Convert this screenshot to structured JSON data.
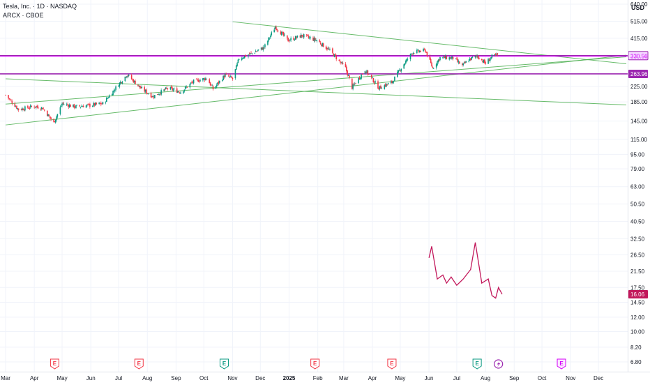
{
  "header": {
    "symbol_line": "Tesla, Inc. · 1D · NASDAQ",
    "overlay_line": "ARCX · CBOE",
    "currency": "USD"
  },
  "colors": {
    "up": "#089981",
    "down": "#f23645",
    "trendline": "#4caf50",
    "level_line": "#9c27b0",
    "magenta_line": "#d500f9",
    "overlay_series": "#c2185b",
    "grid": "#f0f3fa",
    "axis_text": "#131722"
  },
  "chart_data": {
    "type": "line",
    "title": "Tesla, Inc. · 1D · NASDAQ",
    "scale": "log",
    "ylim": [
      5.6,
      880
    ],
    "y_ticks": [
      640.0,
      515.0,
      415.0,
      335.0,
      225.0,
      185.0,
      145.0,
      115.0,
      95.0,
      79.0,
      63.0,
      50.5,
      40.5,
      32.5,
      26.5,
      21.5,
      17.5,
      14.5,
      12.0,
      10.0,
      8.2,
      6.8
    ],
    "x_ticks": [
      {
        "label": "Mar",
        "date": "2024-03-01"
      },
      {
        "label": "Apr",
        "date": "2024-04-01"
      },
      {
        "label": "May",
        "date": "2024-05-01"
      },
      {
        "label": "Jun",
        "date": "2024-06-01"
      },
      {
        "label": "Jul",
        "date": "2024-07-01"
      },
      {
        "label": "Aug",
        "date": "2024-08-01"
      },
      {
        "label": "Sep",
        "date": "2024-09-01"
      },
      {
        "label": "Oct",
        "date": "2024-10-01"
      },
      {
        "label": "Nov",
        "date": "2024-11-01"
      },
      {
        "label": "Dec",
        "date": "2024-12-01"
      },
      {
        "label": "2025",
        "date": "2025-01-01",
        "bold": true
      },
      {
        "label": "Feb",
        "date": "2025-02-01"
      },
      {
        "label": "Mar",
        "date": "2025-03-01"
      },
      {
        "label": "Apr",
        "date": "2025-04-01"
      },
      {
        "label": "May",
        "date": "2025-05-01"
      },
      {
        "label": "Jun",
        "date": "2025-06-01"
      },
      {
        "label": "Jul",
        "date": "2025-07-01"
      },
      {
        "label": "Aug",
        "date": "2025-08-01"
      },
      {
        "label": "Sep",
        "date": "2025-09-01"
      },
      {
        "label": "Oct",
        "date": "2025-10-01"
      },
      {
        "label": "Nov",
        "date": "2025-11-01"
      },
      {
        "label": "Dec",
        "date": "2025-12-01"
      }
    ],
    "xlim": [
      "2024-03-01",
      "2025-12-31"
    ],
    "price_series": {
      "name": "TSLA",
      "points": [
        [
          "2024-03-01",
          202
        ],
        [
          "2024-03-15",
          168
        ],
        [
          "2024-04-01",
          175
        ],
        [
          "2024-04-10",
          171
        ],
        [
          "2024-04-22",
          142
        ],
        [
          "2024-05-01",
          181
        ],
        [
          "2024-05-15",
          174
        ],
        [
          "2024-06-03",
          178
        ],
        [
          "2024-06-14",
          181
        ],
        [
          "2024-07-01",
          231
        ],
        [
          "2024-07-10",
          262
        ],
        [
          "2024-07-25",
          220
        ],
        [
          "2024-08-07",
          198
        ],
        [
          "2024-08-23",
          220
        ],
        [
          "2024-09-06",
          210
        ],
        [
          "2024-09-20",
          240
        ],
        [
          "2024-10-04",
          250
        ],
        [
          "2024-10-11",
          218
        ],
        [
          "2024-10-24",
          260
        ],
        [
          "2024-11-01",
          248
        ],
        [
          "2024-11-08",
          321
        ],
        [
          "2024-11-20",
          340
        ],
        [
          "2024-12-05",
          369
        ],
        [
          "2024-12-17",
          480
        ],
        [
          "2024-12-31",
          404
        ],
        [
          "2025-01-15",
          430
        ],
        [
          "2025-01-31",
          404
        ],
        [
          "2025-02-14",
          355
        ],
        [
          "2025-03-03",
          284
        ],
        [
          "2025-03-10",
          222
        ],
        [
          "2025-03-24",
          278
        ],
        [
          "2025-04-08",
          221
        ],
        [
          "2025-04-22",
          237
        ],
        [
          "2025-05-01",
          280
        ],
        [
          "2025-05-14",
          347
        ],
        [
          "2025-05-28",
          356
        ],
        [
          "2025-06-05",
          284
        ],
        [
          "2025-06-13",
          325
        ],
        [
          "2025-06-27",
          323
        ],
        [
          "2025-07-07",
          293
        ],
        [
          "2025-07-14",
          316
        ],
        [
          "2025-07-23",
          332
        ],
        [
          "2025-08-01",
          302
        ],
        [
          "2025-08-08",
          329
        ],
        [
          "2025-08-14",
          335
        ]
      ]
    },
    "overlay_series": {
      "name": "ARCX · CBOE",
      "points": [
        [
          "2025-06-01",
          25.5
        ],
        [
          "2025-06-04",
          29.5
        ],
        [
          "2025-06-10",
          19.5
        ],
        [
          "2025-06-16",
          20.5
        ],
        [
          "2025-06-20",
          18.5
        ],
        [
          "2025-06-25",
          20.0
        ],
        [
          "2025-07-01",
          18.0
        ],
        [
          "2025-07-08",
          19.5
        ],
        [
          "2025-07-16",
          22.0
        ],
        [
          "2025-07-21",
          31.0
        ],
        [
          "2025-07-28",
          18.5
        ],
        [
          "2025-08-04",
          19.5
        ],
        [
          "2025-08-08",
          15.8
        ],
        [
          "2025-08-12",
          15.3
        ],
        [
          "2025-08-15",
          17.5
        ],
        [
          "2025-08-19",
          16.06
        ]
      ]
    },
    "horizontal_levels": [
      {
        "value": 332.91,
        "label": "332.91"
      },
      {
        "value": 330.56,
        "label": "330.56"
      },
      {
        "value": 263.96,
        "label": "263.96"
      }
    ],
    "last_overlay_value": {
      "value": 16.06,
      "label": "16.06"
    },
    "trendlines": [
      {
        "from": [
          "2024-03-01",
          138
        ],
        "to": [
          "2025-12-31",
          335
        ]
      },
      {
        "from": [
          "2024-03-01",
          180
        ],
        "to": [
          "2025-12-31",
          328
        ]
      },
      {
        "from": [
          "2024-03-01",
          248
        ],
        "to": [
          "2025-12-31",
          178
        ]
      },
      {
        "from": [
          "2024-11-01",
          512
        ],
        "to": [
          "2025-12-31",
          300
        ]
      }
    ],
    "events": [
      {
        "date": "2024-04-23",
        "label": "E",
        "kind": "down"
      },
      {
        "date": "2024-07-23",
        "label": "E",
        "kind": "down"
      },
      {
        "date": "2024-10-23",
        "label": "E",
        "kind": "up"
      },
      {
        "date": "2025-01-29",
        "label": "E",
        "kind": "down"
      },
      {
        "date": "2025-04-22",
        "label": "E",
        "kind": "down"
      },
      {
        "date": "2025-07-23",
        "label": "E",
        "kind": "up"
      },
      {
        "date": "2025-08-15",
        "label": "",
        "kind": "dividend"
      },
      {
        "date": "2025-10-22",
        "label": "E",
        "kind": "future"
      }
    ]
  }
}
